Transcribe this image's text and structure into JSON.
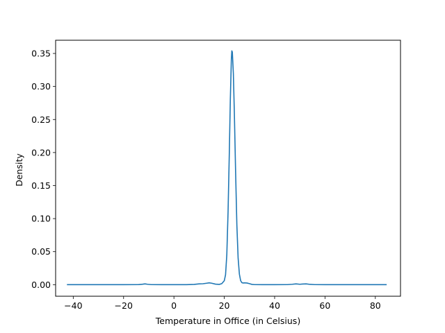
{
  "chart_data": {
    "type": "line",
    "title": "",
    "xlabel": "Temperature in Office (in Celsius)",
    "ylabel": "Density",
    "xlim": [
      -47,
      90
    ],
    "ylim": [
      -0.0175,
      0.37
    ],
    "grid": false,
    "x_ticks": [
      -40,
      -20,
      0,
      20,
      40,
      60,
      80
    ],
    "x_tick_labels": [
      "−40",
      "−20",
      "0",
      "20",
      "40",
      "60",
      "80"
    ],
    "y_ticks": [
      0.0,
      0.05,
      0.1,
      0.15,
      0.2,
      0.25,
      0.3,
      0.35
    ],
    "y_tick_labels": [
      "0.00",
      "0.05",
      "0.10",
      "0.15",
      "0.20",
      "0.25",
      "0.30",
      "0.35"
    ],
    "series": [
      {
        "color": "#1f77b4",
        "x": [
          -42.5,
          -30,
          -20,
          -14,
          -12.5,
          -11.5,
          -10.5,
          -9,
          -5,
          0,
          5,
          8,
          10,
          11.5,
          13,
          14,
          15,
          16.5,
          18,
          19,
          20,
          20.5,
          21,
          21.5,
          22,
          22.4,
          22.8,
          23.0,
          23.2,
          23.6,
          24,
          24.5,
          25,
          25.5,
          26,
          26.5,
          27,
          27.5,
          28,
          29,
          30,
          31,
          32,
          35,
          40,
          45,
          47,
          48.5,
          50,
          51,
          52.5,
          54,
          56,
          60,
          70,
          80,
          84.5
        ],
        "y": [
          0.0,
          0.0,
          0.0,
          0.0002,
          0.0007,
          0.0012,
          0.0006,
          0.0001,
          0.0,
          0.0,
          0.0,
          0.0004,
          0.0012,
          0.0014,
          0.0022,
          0.0028,
          0.0022,
          0.0008,
          0.0004,
          0.0015,
          0.006,
          0.015,
          0.045,
          0.11,
          0.2,
          0.28,
          0.34,
          0.354,
          0.352,
          0.32,
          0.26,
          0.17,
          0.09,
          0.04,
          0.016,
          0.006,
          0.003,
          0.0025,
          0.0028,
          0.0025,
          0.0015,
          0.0004,
          0.0001,
          0.0,
          0.0,
          0.0001,
          0.0006,
          0.0012,
          0.0006,
          0.0009,
          0.0012,
          0.0005,
          0.0001,
          0.0,
          0.0,
          0.0,
          0.0
        ]
      }
    ]
  }
}
